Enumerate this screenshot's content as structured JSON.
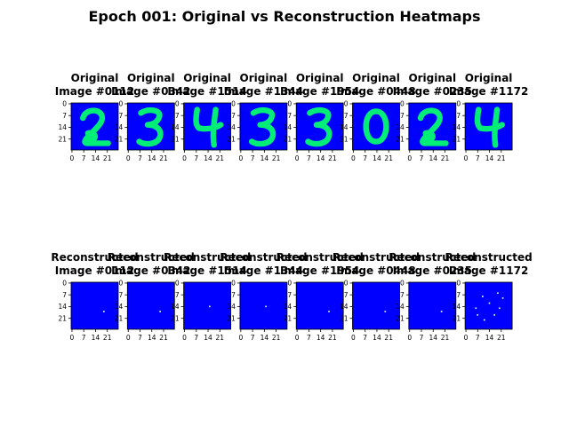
{
  "title": "Epoch 001: Original vs Reconstruction Heatmaps",
  "colors": {
    "background": "#0000ff",
    "stroke": "#00ee77",
    "recon_dot": "#d8f0ff",
    "axis": "#000000"
  },
  "axis_ticks": [
    "0",
    "7",
    "14",
    "21"
  ],
  "chart_data": {
    "type": "heatmap",
    "title": "Epoch 001: Original vs Reconstruction Heatmaps",
    "image_size": [
      28,
      28
    ],
    "colormap": "winter",
    "grid": false,
    "x_ticks": [
      0,
      7,
      14,
      21
    ],
    "y_ticks": [
      0,
      7,
      14,
      21
    ],
    "originals": [
      {
        "title_line1": "Original",
        "title_line2": "Image #0112",
        "digit": "2"
      },
      {
        "title_line1": "Original",
        "title_line2": "Image #0342",
        "digit": "3"
      },
      {
        "title_line1": "Original",
        "title_line2": "Image #1514",
        "digit": "4"
      },
      {
        "title_line1": "Original",
        "title_line2": "Image #1344",
        "digit": "3"
      },
      {
        "title_line1": "Original",
        "title_line2": "Image #1954",
        "digit": "3"
      },
      {
        "title_line1": "Original",
        "title_line2": "Image #0448",
        "digit": "0"
      },
      {
        "title_line1": "Original",
        "title_line2": "Image #0235",
        "digit": "2"
      },
      {
        "title_line1": "Original",
        "title_line2": "Image #1172",
        "digit": "4"
      }
    ],
    "reconstructions": [
      {
        "title_line1": "Reconstructed",
        "title_line2": "Image #0112",
        "hot_pixels": [
          [
            19,
            17
          ]
        ]
      },
      {
        "title_line1": "Reconstructed",
        "title_line2": "Image #0342",
        "hot_pixels": [
          [
            19,
            17
          ]
        ]
      },
      {
        "title_line1": "Reconstructed",
        "title_line2": "Image #1514",
        "hot_pixels": [
          [
            15,
            14
          ]
        ]
      },
      {
        "title_line1": "Reconstructed",
        "title_line2": "Image #1344",
        "hot_pixels": [
          [
            15,
            14
          ]
        ]
      },
      {
        "title_line1": "Reconstructed",
        "title_line2": "Image #1954",
        "hot_pixels": [
          [
            19,
            17
          ]
        ]
      },
      {
        "title_line1": "Reconstructed",
        "title_line2": "Image #0448",
        "hot_pixels": [
          [
            19,
            17
          ]
        ]
      },
      {
        "title_line1": "Reconstructed",
        "title_line2": "Image #0235",
        "hot_pixels": [
          [
            19,
            17
          ]
        ]
      },
      {
        "title_line1": "Reconstructed",
        "title_line2": "Image #1172",
        "hot_pixels": [
          [
            6,
            15
          ],
          [
            7,
            19
          ],
          [
            10,
            8
          ],
          [
            14,
            12
          ],
          [
            17,
            19
          ],
          [
            20,
            15
          ],
          [
            22,
            9
          ],
          [
            11,
            22
          ],
          [
            19,
            6
          ]
        ]
      }
    ]
  }
}
